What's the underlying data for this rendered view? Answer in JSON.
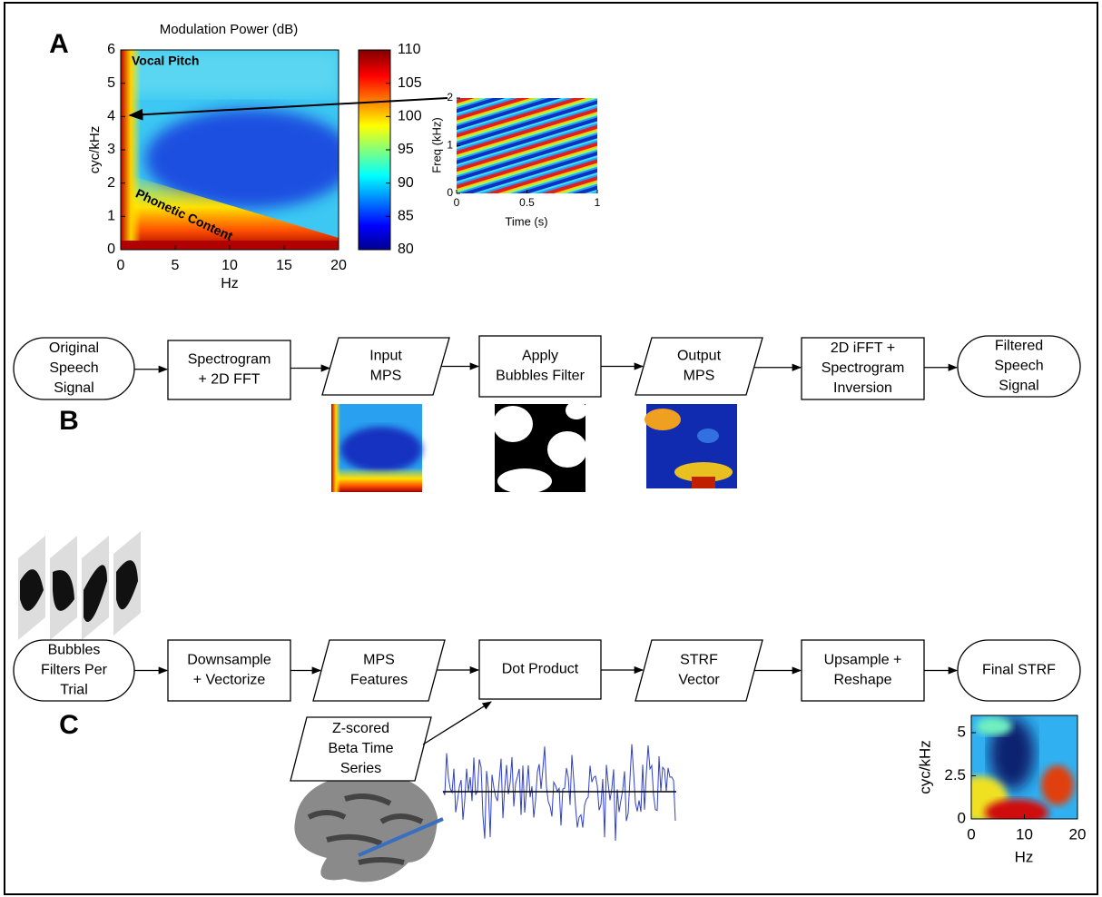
{
  "panel_a": {
    "label": "A",
    "title": "Modulation Power (dB)",
    "y_label": "cyc/kHz",
    "x_label": "Hz",
    "yticks": [
      0,
      1,
      2,
      3,
      4,
      5,
      6
    ],
    "xticks": [
      0,
      5,
      10,
      15,
      20
    ],
    "colorbar_ticks": [
      80,
      85,
      90,
      95,
      100,
      105,
      110
    ],
    "annotations": [
      "Vocal Pitch",
      "Phonetic Content"
    ],
    "inset": {
      "y_label": "Freq (kHz)",
      "x_label": "Time (s)",
      "yticks": [
        0,
        1,
        2
      ],
      "xticks": [
        0,
        0.5,
        1
      ]
    }
  },
  "panel_b": {
    "label": "B",
    "nodes": [
      [
        "Original",
        "Speech",
        "Signal"
      ],
      [
        "Spectrogram",
        "+ 2D FFT"
      ],
      [
        "Input",
        "MPS"
      ],
      [
        "Apply",
        "Bubbles Filter"
      ],
      [
        "Output",
        "MPS"
      ],
      [
        "2D iFFT +",
        "Spectrogram",
        "Inversion"
      ],
      [
        "Filtered",
        "Speech",
        "Signal"
      ]
    ]
  },
  "panel_c": {
    "label": "C",
    "nodes": [
      [
        "Bubbles",
        "Filters Per",
        "Trial"
      ],
      [
        "Downsample",
        "+ Vectorize"
      ],
      [
        "MPS",
        "Features"
      ],
      [
        "Dot Product"
      ],
      [
        "STRF",
        "Vector"
      ],
      [
        "Upsample +",
        "Reshape"
      ],
      [
        "Final STRF"
      ]
    ],
    "input_node": [
      "Z-scored",
      "Beta Time",
      "Series"
    ],
    "strf": {
      "y_label": "cyc/kHz",
      "x_label": "Hz",
      "yticks": [
        0,
        2.5,
        5
      ],
      "xticks": [
        0,
        10,
        20
      ]
    }
  }
}
